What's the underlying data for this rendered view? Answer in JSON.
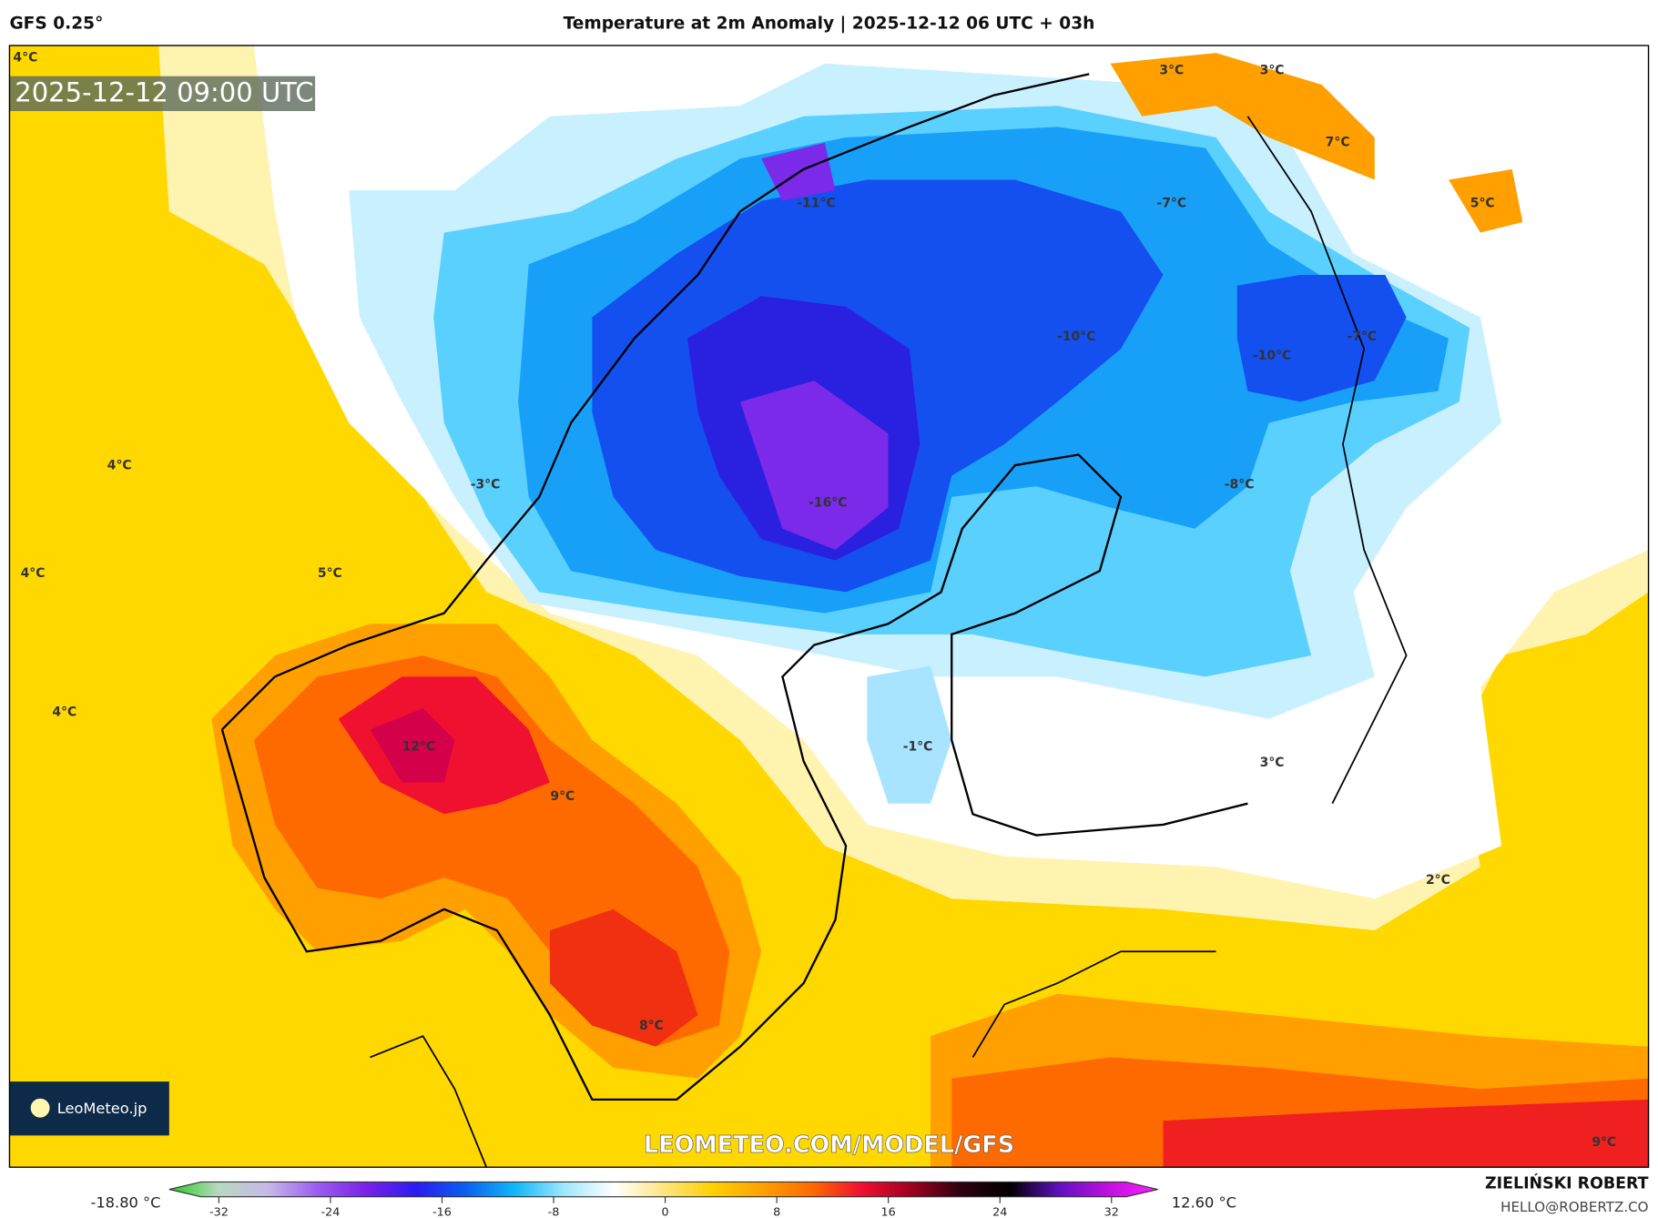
{
  "header": {
    "model": "GFS 0.25°",
    "title": "Temperature at 2m Anomaly | 2025-12-12 06 UTC + 03h"
  },
  "map": {
    "valid_time": "2025-12-12 09:00 UTC",
    "watermark": "LEOMETEO.COM/MODEL/GFS",
    "logo_text": "LeoMeteo.jp",
    "labels": [
      "4°C",
      "3°C",
      "3°C",
      "7°C",
      "5°C",
      "-11°C",
      "-7°C",
      "4°C",
      "-10°C",
      "-10°C",
      "-7°C",
      "-3°C",
      "-8°C",
      "-16°C",
      "4°C",
      "5°C",
      "4°C",
      "-1°C",
      "12°C",
      "9°C",
      "3°C",
      "2°C",
      "8°C",
      "9°C"
    ]
  },
  "colorbar": {
    "min_label": "-18.80 °C",
    "max_label": "12.60 °C",
    "ticks": [
      "-32",
      "-24",
      "-16",
      "-8",
      "0",
      "8",
      "16",
      "24",
      "32"
    ],
    "tick_values": [
      -32,
      -24,
      -16,
      -8,
      0,
      8,
      16,
      24,
      32
    ],
    "colors": [
      "#22cc22",
      "#b8d8c0",
      "#c8b8e8",
      "#9a5cf0",
      "#7a20e8",
      "#2a1cf0",
      "#0a60f0",
      "#10b8f8",
      "#a0e8ff",
      "#ffffff",
      "#ffe680",
      "#ffd000",
      "#ffa000",
      "#ff6a00",
      "#f01030",
      "#a00020",
      "#300010",
      "#000000",
      "#6010c0",
      "#c010e0",
      "#ff20ff"
    ]
  },
  "credits": {
    "author": "ZIELIŃSKI ROBERT",
    "email": "HELLO@ROBERTZ.CO"
  }
}
